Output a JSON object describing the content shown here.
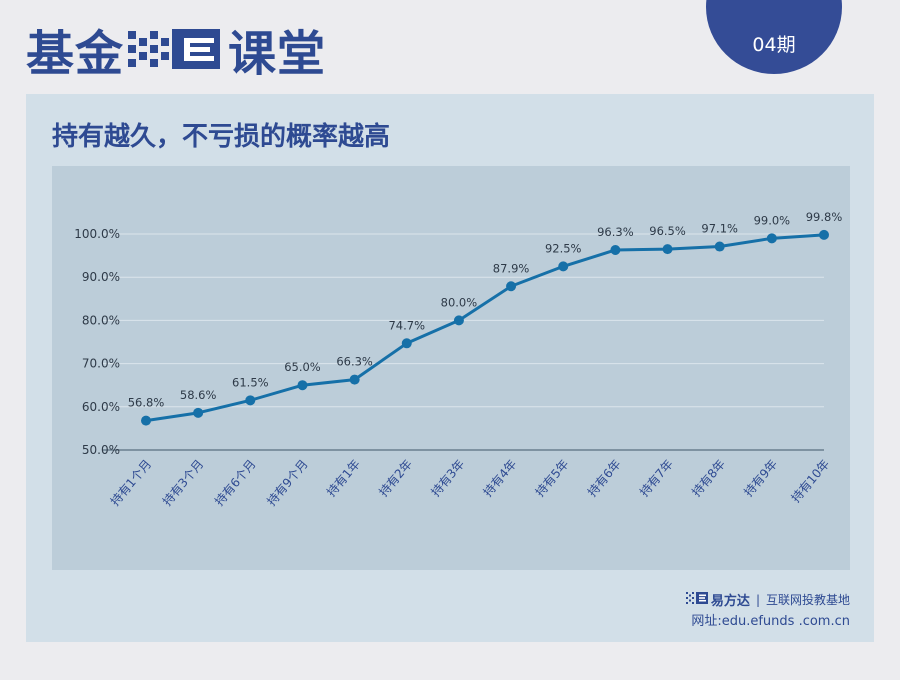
{
  "header": {
    "title_left": "基金",
    "title_right": "课堂",
    "issue": "04期"
  },
  "panel": {
    "title": "持有越久，不亏损的概率越高"
  },
  "footer": {
    "brand": "易方达",
    "slogan": "互联网投教基地",
    "url": "网址:edu.efunds .com.cn"
  },
  "colors": {
    "brand_blue": "#2e4a92",
    "line": "#1670a8",
    "panel_bg": "#d2dfe8",
    "plot_bg": "#bccdd9"
  },
  "chart_data": {
    "type": "line",
    "title": "持有越久，不亏损的概率越高",
    "categories": [
      "持有1个月",
      "持有3个月",
      "持有6个月",
      "持有9个月",
      "持有1年",
      "持有2年",
      "持有3年",
      "持有4年",
      "持有5年",
      "持有6年",
      "持有7年",
      "持有8年",
      "持有9年",
      "持有10年"
    ],
    "series": [
      {
        "values": [
          56.8,
          58.6,
          61.5,
          65.0,
          66.3,
          74.7,
          80.0,
          87.9,
          92.5,
          96.3,
          96.5,
          97.1,
          99.0,
          99.8
        ],
        "labels": [
          "56.8%",
          "58.6%",
          "61.5%",
          "65.0%",
          "66.3%",
          "74.7%",
          "80.0%",
          "87.9%",
          "92.5%",
          "96.3%",
          "96.5%",
          "97.1%",
          "99.0%",
          "99.8%"
        ]
      }
    ],
    "yticks": [
      "50.0%",
      "60.0%",
      "70.0%",
      "80.0%",
      "90.0%",
      "100.0%"
    ],
    "ytick_values": [
      50,
      60,
      70,
      80,
      90,
      100
    ],
    "ylim": [
      50,
      100
    ],
    "grid": true,
    "xlabel": "",
    "ylabel": ""
  }
}
